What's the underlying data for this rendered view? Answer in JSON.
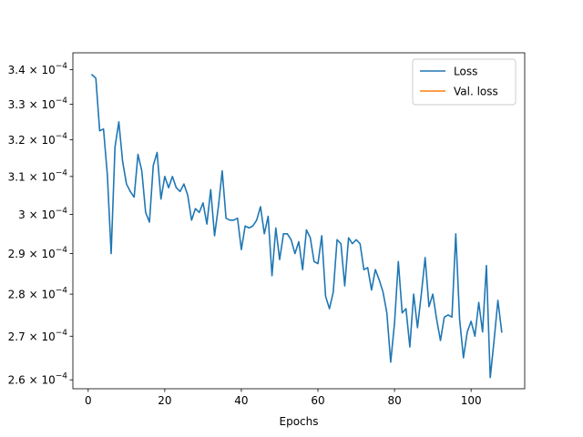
{
  "chart_data": {
    "type": "line",
    "xlabel": "Epochs",
    "ylabel": "",
    "xlim": [
      -4,
      114
    ],
    "ylim": [
      0.000258,
      0.000345
    ],
    "y_scale": "log",
    "grid": false,
    "legend_position": "top-right",
    "x_ticks": [
      0,
      20,
      40,
      60,
      80,
      100
    ],
    "y_ticks": [
      {
        "value": 0.00026,
        "mantissa": "2.6"
      },
      {
        "value": 0.00027,
        "mantissa": "2.7"
      },
      {
        "value": 0.00028,
        "mantissa": "2.8"
      },
      {
        "value": 0.00029,
        "mantissa": "2.9"
      },
      {
        "value": 0.0003,
        "mantissa": "3"
      },
      {
        "value": 0.00031,
        "mantissa": "3.1"
      },
      {
        "value": 0.00032,
        "mantissa": "3.2"
      },
      {
        "value": 0.00033,
        "mantissa": "3.3"
      },
      {
        "value": 0.00034,
        "mantissa": "3.4"
      }
    ],
    "y_tick_times": "× 10",
    "y_tick_exponent": "−4",
    "series": [
      {
        "name": "Loss",
        "color": "#1f77b4",
        "x": [
          1,
          2,
          3,
          4,
          5,
          6,
          7,
          8,
          9,
          10,
          11,
          12,
          13,
          14,
          15,
          16,
          17,
          18,
          19,
          20,
          21,
          22,
          23,
          24,
          25,
          26,
          27,
          28,
          29,
          30,
          31,
          32,
          33,
          34,
          35,
          36,
          37,
          38,
          39,
          40,
          41,
          42,
          43,
          44,
          45,
          46,
          47,
          48,
          49,
          50,
          51,
          52,
          53,
          54,
          55,
          56,
          57,
          58,
          59,
          60,
          61,
          62,
          63,
          64,
          65,
          66,
          67,
          68,
          69,
          70,
          71,
          72,
          73,
          74,
          75,
          76,
          77,
          78,
          79,
          80,
          81,
          82,
          83,
          84,
          85,
          86,
          87,
          88,
          89,
          90,
          91,
          92,
          93,
          94,
          95,
          96,
          97,
          98,
          99,
          100,
          101,
          102,
          103,
          104,
          105,
          106,
          107,
          108
        ],
        "y": [
          0.0003385,
          0.0003375,
          0.0003225,
          0.000323,
          0.0003105,
          0.00029,
          0.000318,
          0.000325,
          0.000314,
          0.000308,
          0.000306,
          0.0003045,
          0.000316,
          0.0003115,
          0.0003005,
          0.000298,
          0.000313,
          0.0003165,
          0.000304,
          0.00031,
          0.000307,
          0.00031,
          0.000307,
          0.000306,
          0.000308,
          0.000305,
          0.0002985,
          0.0003015,
          0.0003005,
          0.000303,
          0.0002975,
          0.0003065,
          0.0002945,
          0.000302,
          0.0003115,
          0.000299,
          0.0002985,
          0.0002985,
          0.000299,
          0.000291,
          0.000297,
          0.0002965,
          0.000297,
          0.0002985,
          0.000302,
          0.000295,
          0.0002995,
          0.0002845,
          0.0002965,
          0.0002885,
          0.000295,
          0.000295,
          0.0002935,
          0.00029,
          0.000293,
          0.000286,
          0.000296,
          0.000294,
          0.000288,
          0.0002875,
          0.0002945,
          0.0002795,
          0.0002765,
          0.0002805,
          0.0002935,
          0.0002925,
          0.000282,
          0.000294,
          0.0002925,
          0.0002935,
          0.0002925,
          0.000286,
          0.0002865,
          0.000281,
          0.000286,
          0.0002835,
          0.0002805,
          0.0002755,
          0.000264,
          0.000273,
          0.000288,
          0.0002755,
          0.0002765,
          0.0002675,
          0.00028,
          0.000272,
          0.00028,
          0.000289,
          0.000277,
          0.00028,
          0.000274,
          0.000269,
          0.0002745,
          0.000275,
          0.0002745,
          0.000295,
          0.000274,
          0.000265,
          0.000271,
          0.0002735,
          0.00027,
          0.000278,
          0.000271,
          0.000287,
          0.0002605,
          0.000269,
          0.0002785,
          0.000271
        ]
      },
      {
        "name": "Val. loss",
        "color": "#ff7f0e",
        "x": [],
        "y": []
      }
    ]
  }
}
